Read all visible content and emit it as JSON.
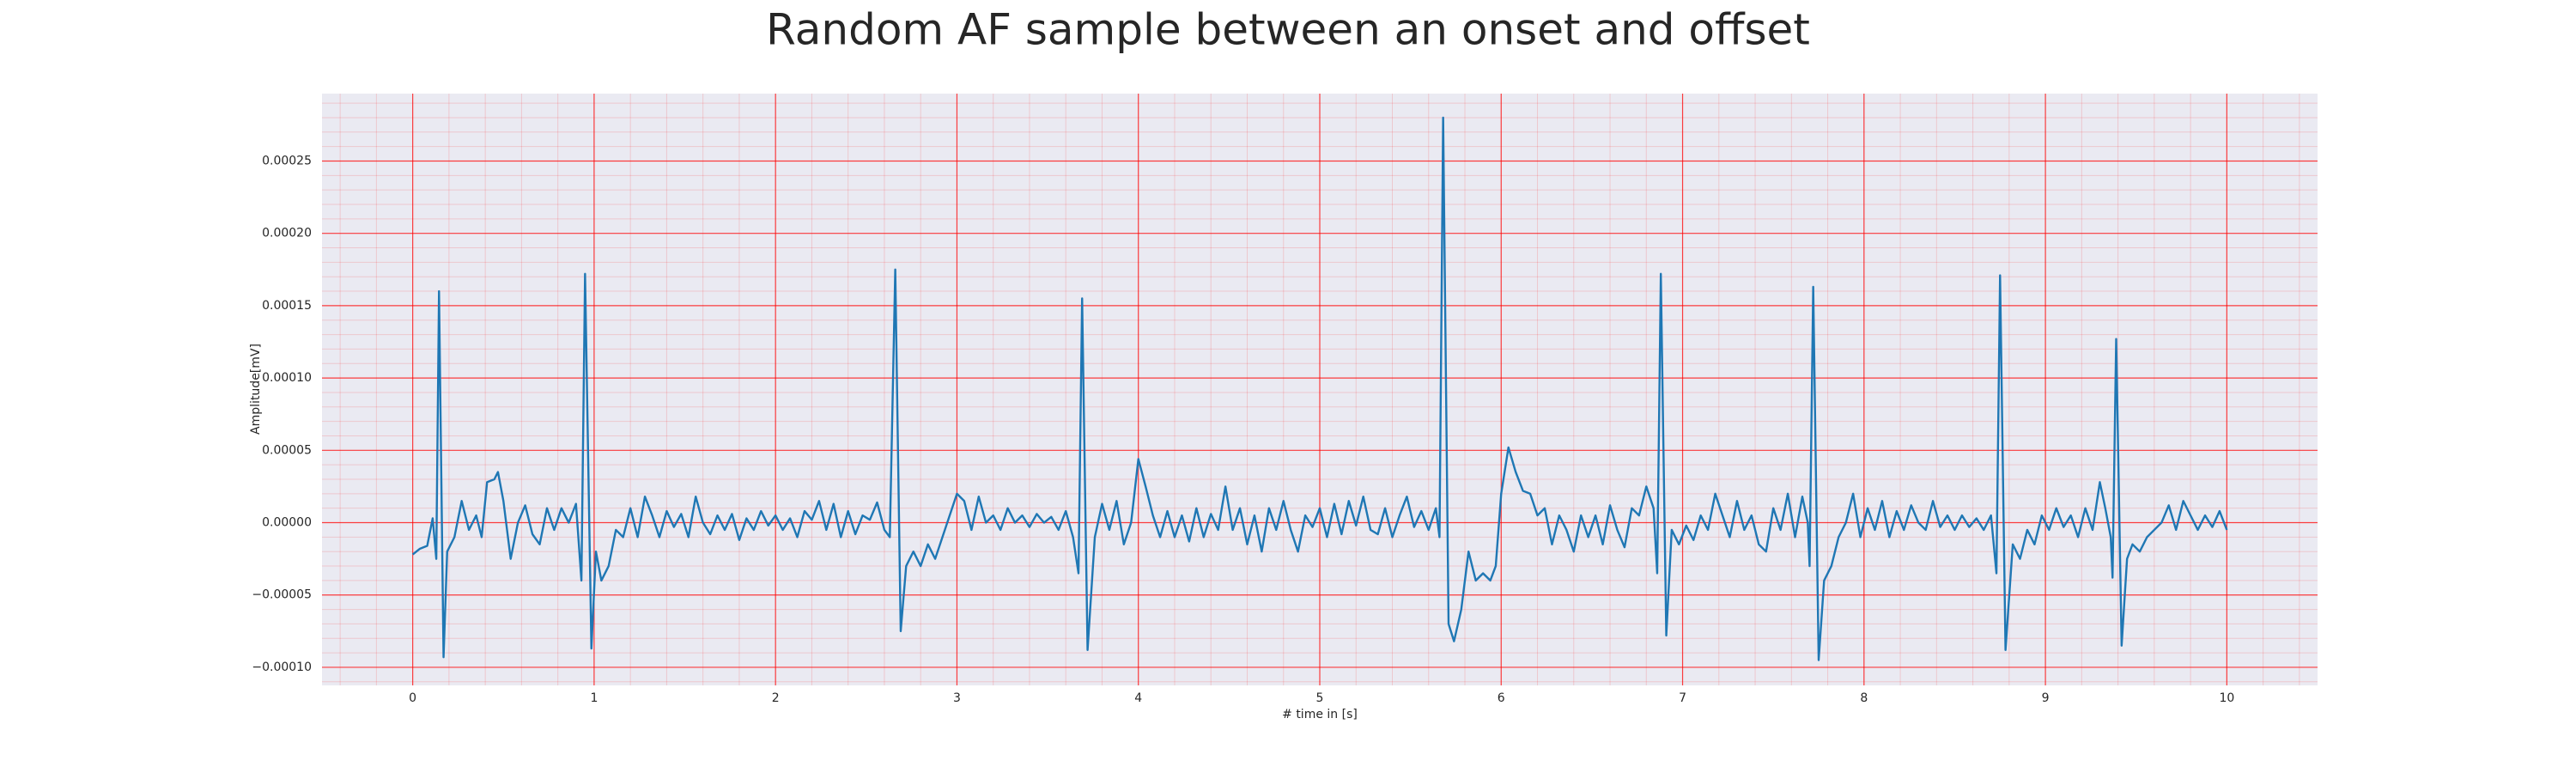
{
  "chart_data": {
    "type": "line",
    "title": "Random AF sample between an onset and offset",
    "xlabel": "# time in [s]",
    "ylabel": "Amplitude[mV]",
    "color": "#1f77b4",
    "grid": true,
    "minor_grid": true,
    "xlim": [
      -0.5,
      10.5
    ],
    "ylim": [
      -0.0001125,
      0.0002966
    ],
    "xticks": [
      0,
      1,
      2,
      3,
      4,
      5,
      6,
      7,
      8,
      9,
      10
    ],
    "yticks": [
      {
        "value": -0.0001,
        "label": "−0.00010"
      },
      {
        "value": -5e-05,
        "label": "−0.00005"
      },
      {
        "value": 0,
        "label": "0.00000"
      },
      {
        "value": 5e-05,
        "label": "0.00005"
      },
      {
        "value": 0.0001,
        "label": "0.00010"
      },
      {
        "value": 0.00015,
        "label": "0.00015"
      },
      {
        "value": 0.0002,
        "label": "0.00020"
      },
      {
        "value": 0.00025,
        "label": "0.00025"
      }
    ],
    "x": [
      0.0,
      0.04,
      0.08,
      0.11,
      0.13,
      0.145,
      0.17,
      0.19,
      0.23,
      0.27,
      0.31,
      0.35,
      0.38,
      0.41,
      0.45,
      0.47,
      0.5,
      0.54,
      0.58,
      0.62,
      0.66,
      0.7,
      0.74,
      0.78,
      0.82,
      0.86,
      0.9,
      0.93,
      0.95,
      0.985,
      1.01,
      1.04,
      1.08,
      1.12,
      1.16,
      1.2,
      1.24,
      1.28,
      1.32,
      1.36,
      1.4,
      1.44,
      1.48,
      1.52,
      1.56,
      1.6,
      1.64,
      1.68,
      1.72,
      1.76,
      1.8,
      1.84,
      1.88,
      1.92,
      1.96,
      2.0,
      2.04,
      2.08,
      2.12,
      2.16,
      2.2,
      2.24,
      2.28,
      2.32,
      2.36,
      2.4,
      2.44,
      2.48,
      2.52,
      2.56,
      2.6,
      2.63,
      2.66,
      2.69,
      2.72,
      2.76,
      2.8,
      2.84,
      2.88,
      2.92,
      3.0,
      3.04,
      3.08,
      3.12,
      3.16,
      3.2,
      3.24,
      3.28,
      3.32,
      3.36,
      3.4,
      3.44,
      3.48,
      3.52,
      3.56,
      3.6,
      3.64,
      3.67,
      3.69,
      3.72,
      3.76,
      3.8,
      3.84,
      3.88,
      3.92,
      3.96,
      4.0,
      4.04,
      4.08,
      4.12,
      4.16,
      4.2,
      4.24,
      4.28,
      4.32,
      4.36,
      4.4,
      4.44,
      4.48,
      4.52,
      4.56,
      4.6,
      4.64,
      4.68,
      4.72,
      4.76,
      4.8,
      4.84,
      4.88,
      4.92,
      4.96,
      5.0,
      5.04,
      5.08,
      5.12,
      5.16,
      5.2,
      5.24,
      5.28,
      5.32,
      5.36,
      5.4,
      5.44,
      5.48,
      5.52,
      5.56,
      5.6,
      5.64,
      5.66,
      5.68,
      5.71,
      5.74,
      5.78,
      5.82,
      5.86,
      5.9,
      5.94,
      5.97,
      6.0,
      6.04,
      6.08,
      6.12,
      6.16,
      6.2,
      6.24,
      6.28,
      6.32,
      6.36,
      6.4,
      6.44,
      6.48,
      6.52,
      6.56,
      6.6,
      6.64,
      6.68,
      6.72,
      6.76,
      6.8,
      6.84,
      6.86,
      6.88,
      6.91,
      6.94,
      6.98,
      7.02,
      7.06,
      7.1,
      7.14,
      7.18,
      7.22,
      7.26,
      7.3,
      7.34,
      7.38,
      7.42,
      7.46,
      7.5,
      7.54,
      7.58,
      7.62,
      7.66,
      7.69,
      7.7,
      7.72,
      7.75,
      7.78,
      7.82,
      7.86,
      7.9,
      7.94,
      7.98,
      8.02,
      8.06,
      8.1,
      8.14,
      8.18,
      8.22,
      8.26,
      8.3,
      8.34,
      8.38,
      8.42,
      8.46,
      8.5,
      8.54,
      8.58,
      8.62,
      8.66,
      8.7,
      8.73,
      8.75,
      8.78,
      8.82,
      8.86,
      8.9,
      8.94,
      8.98,
      9.02,
      9.06,
      9.1,
      9.14,
      9.18,
      9.22,
      9.26,
      9.3,
      9.33,
      9.36,
      9.37,
      9.39,
      9.42,
      9.45,
      9.48,
      9.52,
      9.56,
      9.6,
      9.64,
      9.68,
      9.72,
      9.76,
      9.8,
      9.84,
      9.88,
      9.92,
      9.96,
      10.0
    ],
    "values": [
      -2.2e-05,
      -1.8e-05,
      -1.6e-05,
      3e-06,
      -2.5e-05,
      0.00016,
      -9.3e-05,
      -2e-05,
      -1e-05,
      1.5e-05,
      -5e-06,
      5e-06,
      -1e-05,
      2.8e-05,
      3e-05,
      3.5e-05,
      1.5e-05,
      -2.5e-05,
      0,
      1.2e-05,
      -8e-06,
      -1.5e-05,
      1e-05,
      -5e-06,
      1e-05,
      0,
      1.3e-05,
      -4e-05,
      0.000172,
      -8.7e-05,
      -2e-05,
      -4e-05,
      -3e-05,
      -5e-06,
      -1e-05,
      1e-05,
      -1e-05,
      1.8e-05,
      5e-06,
      -1e-05,
      8e-06,
      -3e-06,
      6e-06,
      -1e-05,
      1.8e-05,
      0,
      -8e-06,
      5e-06,
      -5e-06,
      6e-06,
      -1.2e-05,
      3e-06,
      -5e-06,
      8e-06,
      -2e-06,
      5e-06,
      -5e-06,
      3e-06,
      -1e-05,
      8e-06,
      2e-06,
      1.5e-05,
      -5e-06,
      1.3e-05,
      -1e-05,
      8e-06,
      -8e-06,
      5e-06,
      2e-06,
      1.4e-05,
      -5e-06,
      -1e-05,
      0.000175,
      -7.5e-05,
      -3e-05,
      -2e-05,
      -3e-05,
      -1.5e-05,
      -2.5e-05,
      -1e-05,
      2e-05,
      1.5e-05,
      -5e-06,
      1.8e-05,
      0,
      5e-06,
      -5e-06,
      1e-05,
      0,
      5e-06,
      -3e-06,
      6e-06,
      0,
      4e-06,
      -5e-06,
      8e-06,
      -1e-05,
      -3.5e-05,
      0.000155,
      -8.8e-05,
      -1e-05,
      1.3e-05,
      -5e-06,
      1.5e-05,
      -1.5e-05,
      0,
      4.4e-05,
      2.5e-05,
      5e-06,
      -1e-05,
      8e-06,
      -1e-05,
      5e-06,
      -1.3e-05,
      1e-05,
      -1e-05,
      6e-06,
      -5e-06,
      2.5e-05,
      -5e-06,
      1e-05,
      -1.5e-05,
      5e-06,
      -2e-05,
      1e-05,
      -5e-06,
      1.5e-05,
      -5e-06,
      -2e-05,
      5e-06,
      -3e-06,
      1e-05,
      -1e-05,
      1.3e-05,
      -8e-06,
      1.5e-05,
      -2e-06,
      1.8e-05,
      -5e-06,
      -8e-06,
      1e-05,
      -1e-05,
      5e-06,
      1.8e-05,
      -3e-06,
      8e-06,
      -5e-06,
      1e-05,
      -1e-05,
      0.00028,
      -7e-05,
      -8.2e-05,
      -6e-05,
      -2e-05,
      -4e-05,
      -3.5e-05,
      -4e-05,
      -3e-05,
      2e-05,
      5.2e-05,
      3.5e-05,
      2.2e-05,
      2e-05,
      5e-06,
      1e-05,
      -1.5e-05,
      5e-06,
      -5e-06,
      -2e-05,
      5e-06,
      -1e-05,
      5e-06,
      -1.5e-05,
      1.2e-05,
      -5e-06,
      -1.7e-05,
      1e-05,
      5e-06,
      2.5e-05,
      1e-05,
      -3.5e-05,
      0.000172,
      -7.8e-05,
      -5e-06,
      -1.5e-05,
      -2e-06,
      -1.2e-05,
      5e-06,
      -5e-06,
      2e-05,
      5e-06,
      -1e-05,
      1.5e-05,
      -5e-06,
      5e-06,
      -1.5e-05,
      -2e-05,
      1e-05,
      -5e-06,
      2e-05,
      -1e-05,
      1.8e-05,
      0,
      -3e-05,
      0.000163,
      -9.5e-05,
      -4e-05,
      -3e-05,
      -1e-05,
      0,
      2e-05,
      -1e-05,
      1e-05,
      -5e-06,
      1.5e-05,
      -1e-05,
      8e-06,
      -5e-06,
      1.2e-05,
      0,
      -5e-06,
      1.5e-05,
      -3e-06,
      5e-06,
      -5e-06,
      5e-06,
      -3e-06,
      3e-06,
      -5e-06,
      5e-06,
      -3.5e-05,
      0.000171,
      -8.8e-05,
      -1.5e-05,
      -2.5e-05,
      -5e-06,
      -1.5e-05,
      5e-06,
      -5e-06,
      1e-05,
      -3e-06,
      5e-06,
      -1e-05,
      1e-05,
      -5e-06,
      2.8e-05,
      1e-05,
      -1e-05,
      -3.8e-05,
      0.000127,
      -8.5e-05,
      -2.5e-05,
      -1.5e-05,
      -2e-05,
      -1e-05,
      -5e-06,
      0,
      1.2e-05,
      -5e-06,
      1.5e-05,
      5e-06,
      -5e-06,
      5e-06,
      -3e-06,
      8e-06,
      -5e-06
    ]
  }
}
